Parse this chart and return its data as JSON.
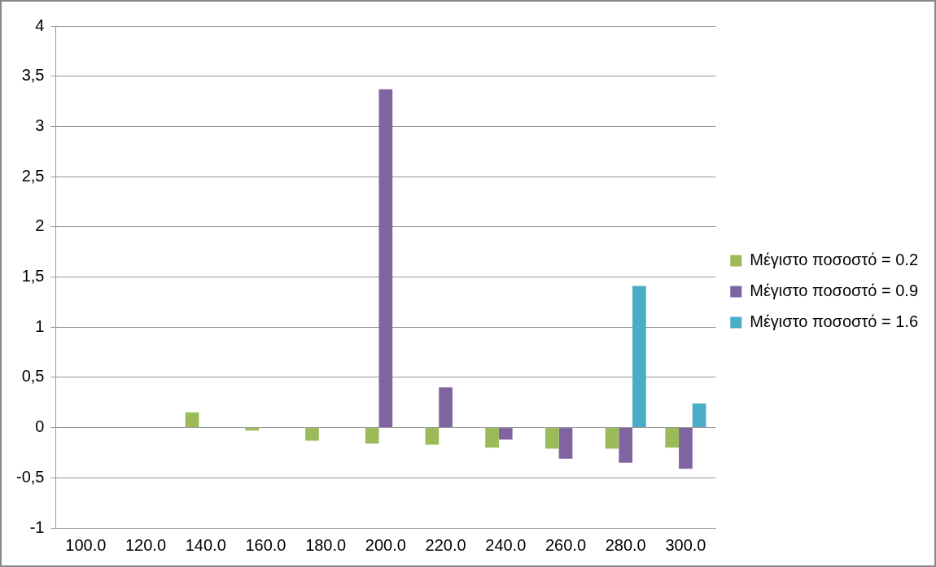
{
  "chart_data": {
    "type": "bar",
    "categories": [
      "100.0",
      "120.0",
      "140.0",
      "160.0",
      "180.0",
      "200.0",
      "220.0",
      "240.0",
      "260.0",
      "280.0",
      "300.0"
    ],
    "series": [
      {
        "name": "Μέγιστο ποσοστό = 0.2",
        "color": "#9bbb59",
        "values": [
          null,
          null,
          0.15,
          -0.03,
          -0.13,
          -0.16,
          -0.17,
          -0.2,
          -0.21,
          -0.21,
          -0.2
        ]
      },
      {
        "name": "Μέγιστο ποσοστό = 0.9",
        "color": "#8064a2",
        "values": [
          null,
          null,
          null,
          null,
          null,
          3.37,
          0.4,
          -0.12,
          -0.31,
          -0.35,
          -0.41
        ]
      },
      {
        "name": "Μέγιστο ποσοστό = 1.6",
        "color": "#4bacc6",
        "values": [
          null,
          null,
          null,
          null,
          null,
          null,
          null,
          null,
          null,
          1.41,
          0.24
        ]
      }
    ],
    "ylim": [
      -1,
      4
    ],
    "yticks": [
      {
        "value": -1,
        "label": "-1"
      },
      {
        "value": -0.5,
        "label": "-0,5"
      },
      {
        "value": 0,
        "label": "0"
      },
      {
        "value": 0.5,
        "label": "0,5"
      },
      {
        "value": 1,
        "label": "1"
      },
      {
        "value": 1.5,
        "label": "1,5"
      },
      {
        "value": 2,
        "label": "2"
      },
      {
        "value": 2.5,
        "label": "2,5"
      },
      {
        "value": 3,
        "label": "3"
      },
      {
        "value": 3.5,
        "label": "3,5"
      },
      {
        "value": 4,
        "label": "4"
      }
    ],
    "grid": "y",
    "legend": "right"
  }
}
